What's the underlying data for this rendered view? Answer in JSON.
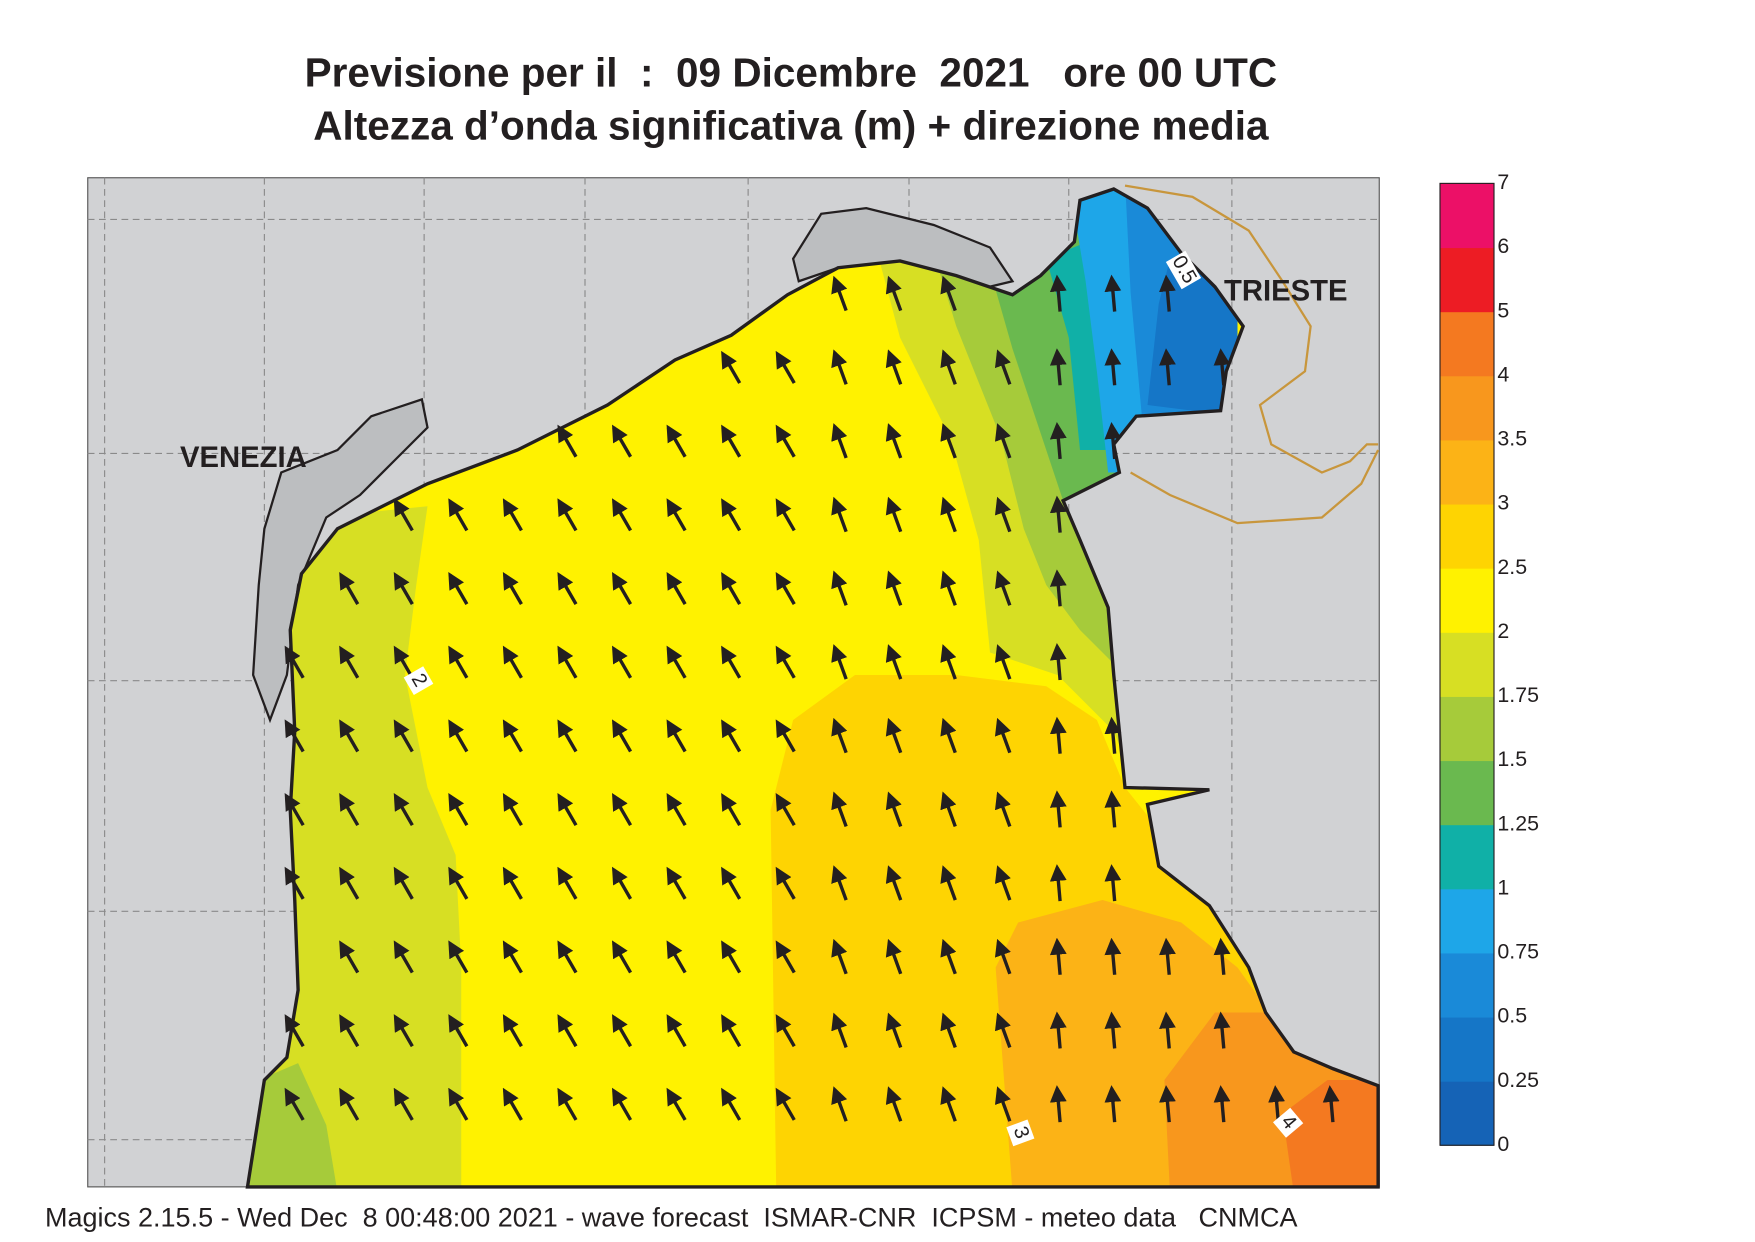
{
  "title": [
    "Previsione per il  :  09 Dicembre  2021   ore 00 UTC",
    "Altezza d’onda significativa (m) + direzione media"
  ],
  "footer": "Magics 2.15.5 - Wed Dec  8 00:48:00 2021 - wave forecast  ISMAR-CNR  ICPSM - meteo data   CNMCA",
  "cities": [
    "VENEZIA",
    "TRIESTE"
  ],
  "contour_labels": [
    "0.5",
    "2",
    "3",
    "4"
  ],
  "colorbar": {
    "ticks": [
      0,
      0.25,
      0.5,
      0.75,
      1,
      1.25,
      1.5,
      1.75,
      2,
      2.5,
      3,
      3.5,
      4,
      5,
      6,
      7
    ],
    "colors": [
      "#1563b6",
      "#1576c7",
      "#1a8ad8",
      "#1ea6e8",
      "#10b0a7",
      "#6ab94f",
      "#a6cb3a",
      "#d7df23",
      "#fff200",
      "#fed402",
      "#fcb316",
      "#f8971d",
      "#f47920",
      "#ed1c24",
      "#ec1067"
    ]
  }
}
